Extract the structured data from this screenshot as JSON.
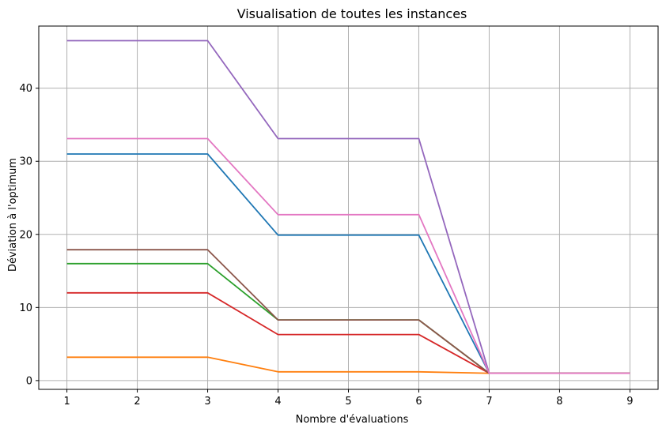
{
  "chart_data": {
    "type": "line",
    "title": "Visualisation de toutes les instances",
    "xlabel": "Nombre d'évaluations",
    "ylabel": "Déviation à l'optimum",
    "x": [
      1,
      2,
      3,
      4,
      5,
      6,
      7,
      8,
      9
    ],
    "x_ticks": [
      "1",
      "2",
      "3",
      "4",
      "5",
      "6",
      "7",
      "8",
      "9"
    ],
    "y_ticks": [
      "0",
      "10",
      "20",
      "30",
      "40"
    ],
    "xlim": [
      0.6,
      9.4
    ],
    "ylim": [
      -1.2,
      48.5
    ],
    "grid": true,
    "legend": "none",
    "series": [
      {
        "color": "#1f77b4",
        "values": [
          31.0,
          31.0,
          31.0,
          19.9,
          19.9,
          19.9,
          1.0,
          1.0,
          1.0
        ]
      },
      {
        "color": "#ff7f0e",
        "values": [
          3.2,
          3.2,
          3.2,
          1.2,
          1.2,
          1.2,
          1.0,
          1.0,
          1.0
        ]
      },
      {
        "color": "#2ca02c",
        "values": [
          16.0,
          16.0,
          16.0,
          8.3,
          8.3,
          8.3,
          1.0,
          1.0,
          1.0
        ]
      },
      {
        "color": "#d62728",
        "values": [
          12.0,
          12.0,
          12.0,
          6.3,
          6.3,
          6.3,
          1.0,
          1.0,
          1.0
        ]
      },
      {
        "color": "#9467bd",
        "values": [
          46.5,
          46.5,
          46.5,
          33.1,
          33.1,
          33.1,
          1.0,
          1.0,
          1.0
        ]
      },
      {
        "color": "#8c564b",
        "values": [
          17.9,
          17.9,
          17.9,
          8.3,
          8.3,
          8.3,
          1.0,
          1.0,
          1.0
        ]
      },
      {
        "color": "#e377c2",
        "values": [
          33.1,
          33.1,
          33.1,
          22.7,
          22.7,
          22.7,
          1.0,
          1.0,
          1.0
        ]
      }
    ]
  }
}
